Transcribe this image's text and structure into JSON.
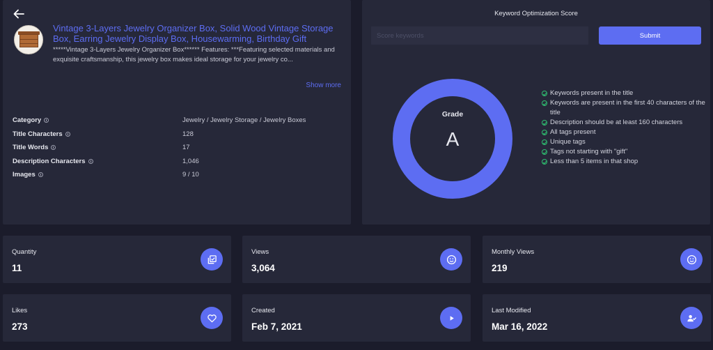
{
  "product": {
    "title": "Vintage 3-Layers Jewelry Organizer Box, Solid Wood Vintage Storage Box, Earring Jewelry Display Box, Housewarming, Birthday Gift",
    "description": "*****Vintage 3-Layers Jewelry Organizer Box****** Features: ***Featuring selected materials and exquisite craftsmanship, this jewelry box makes ideal storage for your jewelry co...",
    "show_more": "Show more",
    "details": [
      {
        "label": "Category",
        "value": "Jewelry / Jewelry Storage / Jewelry Boxes"
      },
      {
        "label": "Title Characters",
        "value": "128"
      },
      {
        "label": "Title Words",
        "value": "17"
      },
      {
        "label": "Description Characters",
        "value": "1,046"
      },
      {
        "label": "Images",
        "value": "9 / 10"
      }
    ]
  },
  "score": {
    "title": "Keyword Optimization Score",
    "input_placeholder": "Score keywords",
    "submit_label": "Submit",
    "grade_label": "Grade",
    "grade_value": "A",
    "checks": [
      "Keywords present in the title",
      "Keywords are present in the first 40 characters of the title",
      "Description should be at least 160 characters",
      "All tags present",
      "Unique tags",
      "Tags not starting with \"gift\"",
      "Less than 5 items in that shop"
    ]
  },
  "stats": [
    {
      "label": "Quantity",
      "value": "11",
      "icon": "stack-icon"
    },
    {
      "label": "Views",
      "value": "3,064",
      "icon": "smile-icon"
    },
    {
      "label": "Monthly Views",
      "value": "219",
      "icon": "smile-icon"
    },
    {
      "label": "Likes",
      "value": "273",
      "icon": "heart-icon"
    },
    {
      "label": "Created",
      "value": "Feb 7, 2021",
      "icon": "play-icon"
    },
    {
      "label": "Last Modified",
      "value": "Mar 16, 2022",
      "icon": "user-check-icon"
    }
  ],
  "colors": {
    "accent": "#5d6df2",
    "panel": "#262839",
    "background": "#1b1c2b",
    "check": "#2fbf71"
  }
}
